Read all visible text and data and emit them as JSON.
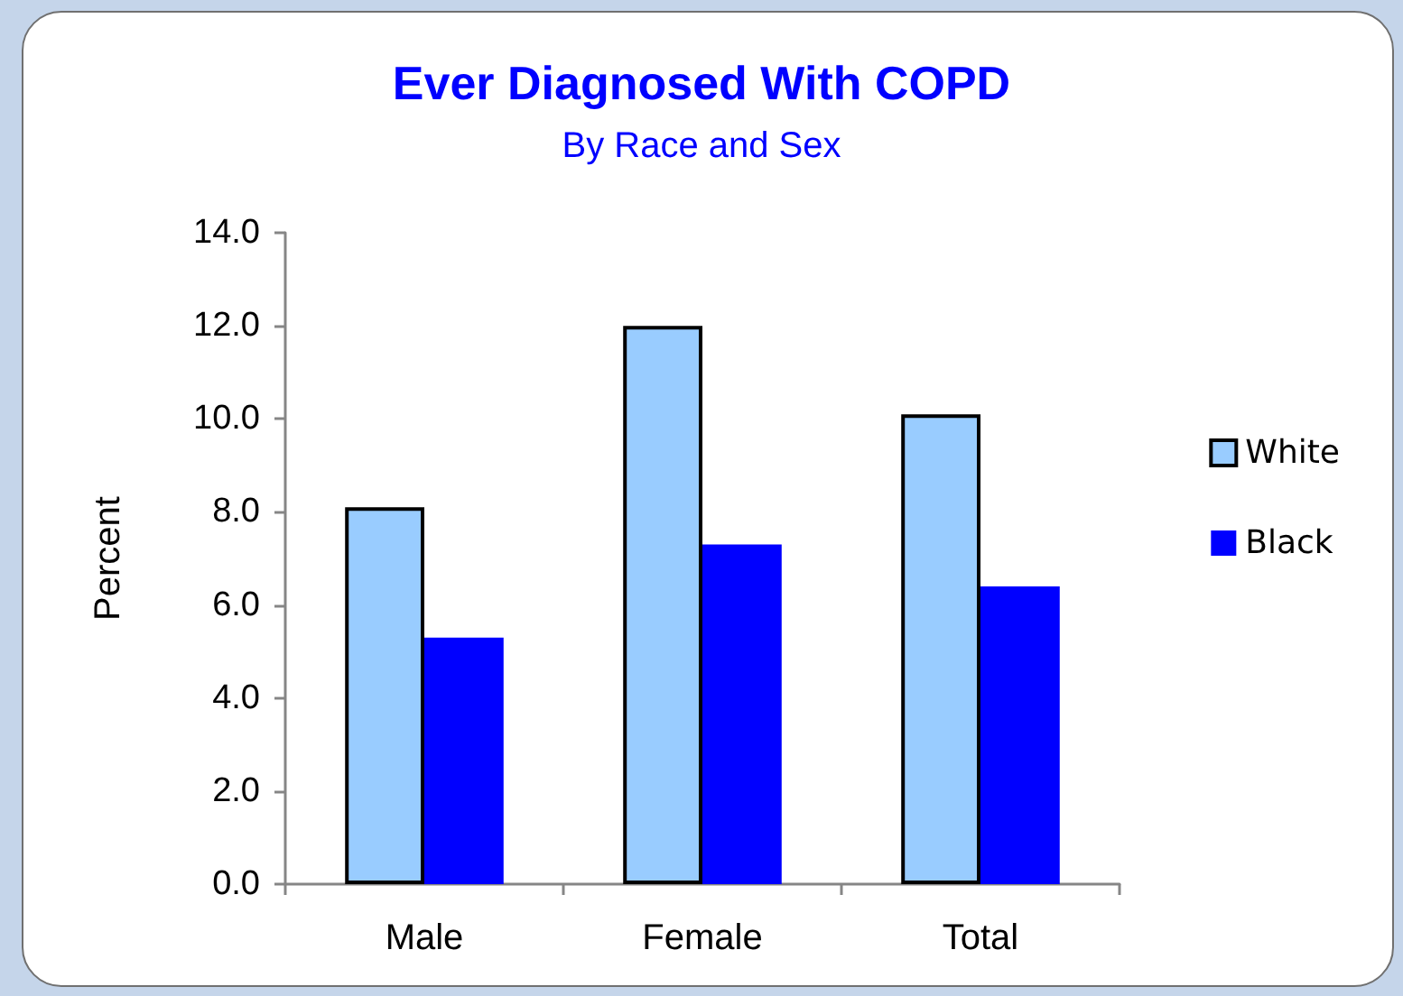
{
  "chart_data": {
    "type": "bar",
    "title": "Ever Diagnosed With COPD",
    "subtitle": "By Race and Sex",
    "ylabel": "Percent",
    "categories": [
      "Male",
      "Female",
      "Total"
    ],
    "series": [
      {
        "name": "White",
        "color": "#99ccff",
        "values": [
          8.1,
          12.0,
          10.1
        ]
      },
      {
        "name": "Black",
        "color": "#0000ff",
        "values": [
          5.3,
          7.3,
          6.4
        ]
      }
    ],
    "ylim": [
      0,
      14
    ],
    "yticks": [
      {
        "value": 0,
        "label": "0.0"
      },
      {
        "value": 2,
        "label": "2.0"
      },
      {
        "value": 4,
        "label": "4.0"
      },
      {
        "value": 6,
        "label": "6.0"
      },
      {
        "value": 8,
        "label": "8.0"
      },
      {
        "value": 10,
        "label": "10.0"
      },
      {
        "value": 12,
        "label": "12.0"
      },
      {
        "value": 14,
        "label": "14.0"
      }
    ],
    "grid": false,
    "legend": "right"
  }
}
